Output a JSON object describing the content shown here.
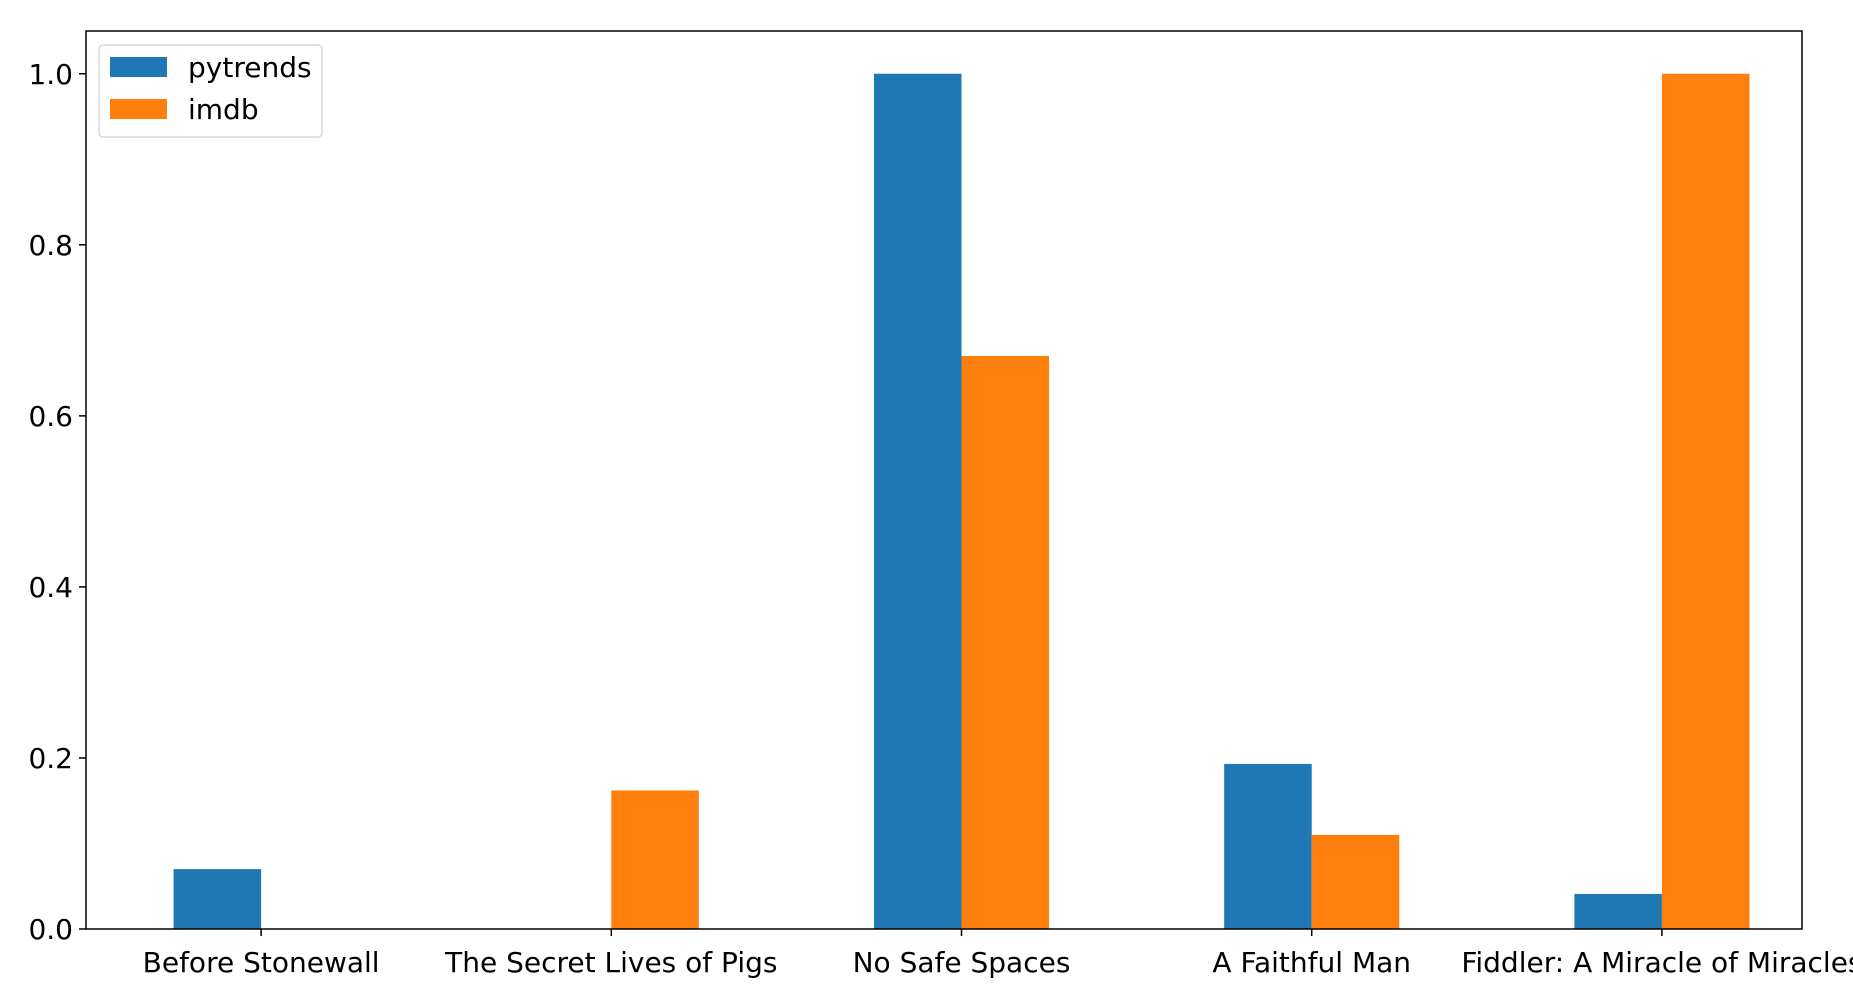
{
  "chart_data": {
    "type": "bar",
    "title": "",
    "xlabel": "",
    "ylabel": "",
    "categories": [
      "Before Stonewall",
      "The Secret Lives of Pigs",
      "No Safe Spaces",
      "A Faithful Man",
      "Fiddler: A Miracle of Miracles"
    ],
    "series": [
      {
        "name": "pytrends",
        "color": "#1f77b4",
        "values": [
          0.07,
          0.0,
          1.0,
          0.193,
          0.041
        ]
      },
      {
        "name": "imdb",
        "color": "#ff7f0e",
        "values": [
          0.0,
          0.162,
          0.67,
          0.11,
          1.0
        ]
      }
    ],
    "ylim": [
      0,
      1.05
    ],
    "yticks": [
      "0.0",
      "0.2",
      "0.4",
      "0.6",
      "0.8",
      "1.0"
    ],
    "grid": false,
    "legend_position": "top-left"
  }
}
